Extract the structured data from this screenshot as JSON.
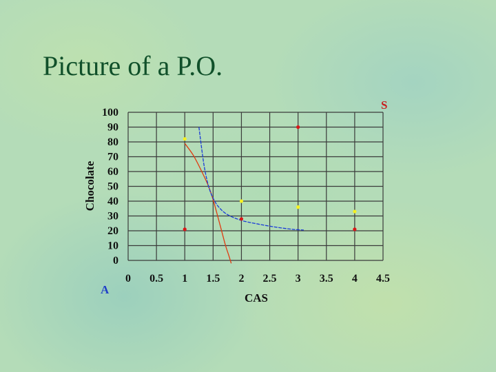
{
  "slide": {
    "title": "Picture of a P.O."
  },
  "chart_data": {
    "type": "line",
    "xlabel": "CAS",
    "ylabel": "Chocolate",
    "xlim": [
      0,
      4.5
    ],
    "ylim": [
      0,
      100
    ],
    "x_ticks": [
      0,
      0.5,
      1,
      1.5,
      2,
      2.5,
      3,
      3.5,
      4,
      4.5
    ],
    "x_tick_labels": [
      "0",
      "0.5",
      "1",
      "1.5",
      "2",
      "2.5",
      "3",
      "3.5",
      "4",
      "4.5"
    ],
    "y_ticks": [
      0,
      10,
      20,
      30,
      40,
      50,
      60,
      70,
      80,
      90,
      100
    ],
    "y_tick_labels": [
      "0",
      "10",
      "20",
      "30",
      "40",
      "50",
      "60",
      "70",
      "80",
      "90",
      "100"
    ],
    "grid": true,
    "corner_labels": {
      "top_right": "S",
      "bottom_left": "A"
    },
    "series": [
      {
        "color": "#e03a10",
        "x": [
          1.0,
          1.15,
          1.3,
          1.42,
          1.5,
          1.58,
          1.65,
          1.72,
          1.78,
          1.82
        ],
        "y": [
          79,
          71,
          60,
          50,
          41,
          30,
          20,
          10,
          3,
          -2
        ]
      },
      {
        "color": "#1a3ad8",
        "x": [
          1.25,
          1.3,
          1.35,
          1.42,
          1.5,
          1.6,
          1.75,
          2.0,
          2.3,
          2.6,
          2.9,
          3.1
        ],
        "y": [
          90,
          75,
          62,
          50,
          42,
          36,
          31,
          27,
          24.5,
          22.5,
          21,
          20.5
        ]
      }
    ],
    "points": [
      {
        "x": 1,
        "y": 82,
        "color": "#f5f020"
      },
      {
        "x": 2,
        "y": 40,
        "color": "#f5f020"
      },
      {
        "x": 3,
        "y": 36,
        "color": "#f5f020"
      },
      {
        "x": 4,
        "y": 33,
        "color": "#f5f020"
      },
      {
        "x": 3,
        "y": 90,
        "color": "#d81818"
      },
      {
        "x": 1,
        "y": 21,
        "color": "#d81818"
      },
      {
        "x": 2,
        "y": 28,
        "color": "#d81818"
      },
      {
        "x": 4,
        "y": 21,
        "color": "#d81818"
      }
    ]
  }
}
